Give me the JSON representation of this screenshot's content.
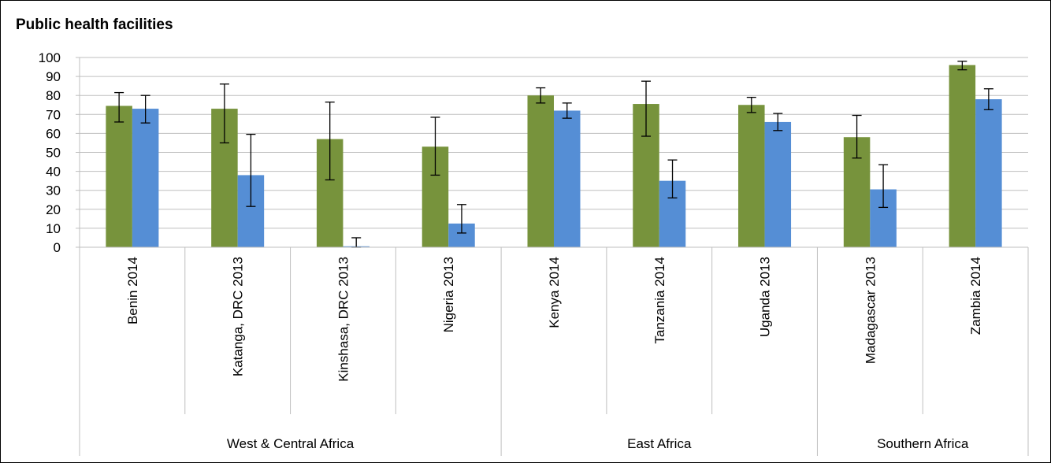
{
  "chart_data": {
    "type": "bar",
    "title": "Public health facilities",
    "ylim": [
      0,
      100
    ],
    "yticks": [
      0,
      10,
      20,
      30,
      40,
      50,
      60,
      70,
      80,
      90,
      100
    ],
    "grid": true,
    "categories": [
      "Benin 2014",
      "Katanga, DRC 2013",
      "Kinshasa, DRC 2013",
      "Nigeria 2013",
      "Kenya 2014",
      "Tanzania 2014",
      "Uganda 2013",
      "Madagascar 2013",
      "Zambia 2014"
    ],
    "groups": [
      {
        "label": "West & Central Africa",
        "count": 4
      },
      {
        "label": "East Africa",
        "count": 3
      },
      {
        "label": "Southern Africa",
        "count": 2
      }
    ],
    "series": [
      {
        "color": "#77933c",
        "values": [
          74.5,
          73,
          57,
          53,
          80,
          75.5,
          75,
          58,
          96
        ],
        "error_low": [
          66,
          55,
          35.5,
          38,
          76,
          58.5,
          71,
          47,
          93.5
        ],
        "error_high": [
          81.5,
          86,
          76.5,
          68.5,
          84,
          87.5,
          79,
          69.5,
          98
        ]
      },
      {
        "color": "#558ed5",
        "values": [
          73,
          38,
          0.5,
          12.5,
          72,
          35,
          66,
          30.5,
          78
        ],
        "error_low": [
          65.5,
          21.5,
          0,
          7.5,
          68,
          26,
          61.5,
          21,
          72.5
        ],
        "error_high": [
          80,
          59.5,
          5,
          22.5,
          76,
          46,
          70.5,
          43.5,
          83.5
        ]
      }
    ]
  }
}
